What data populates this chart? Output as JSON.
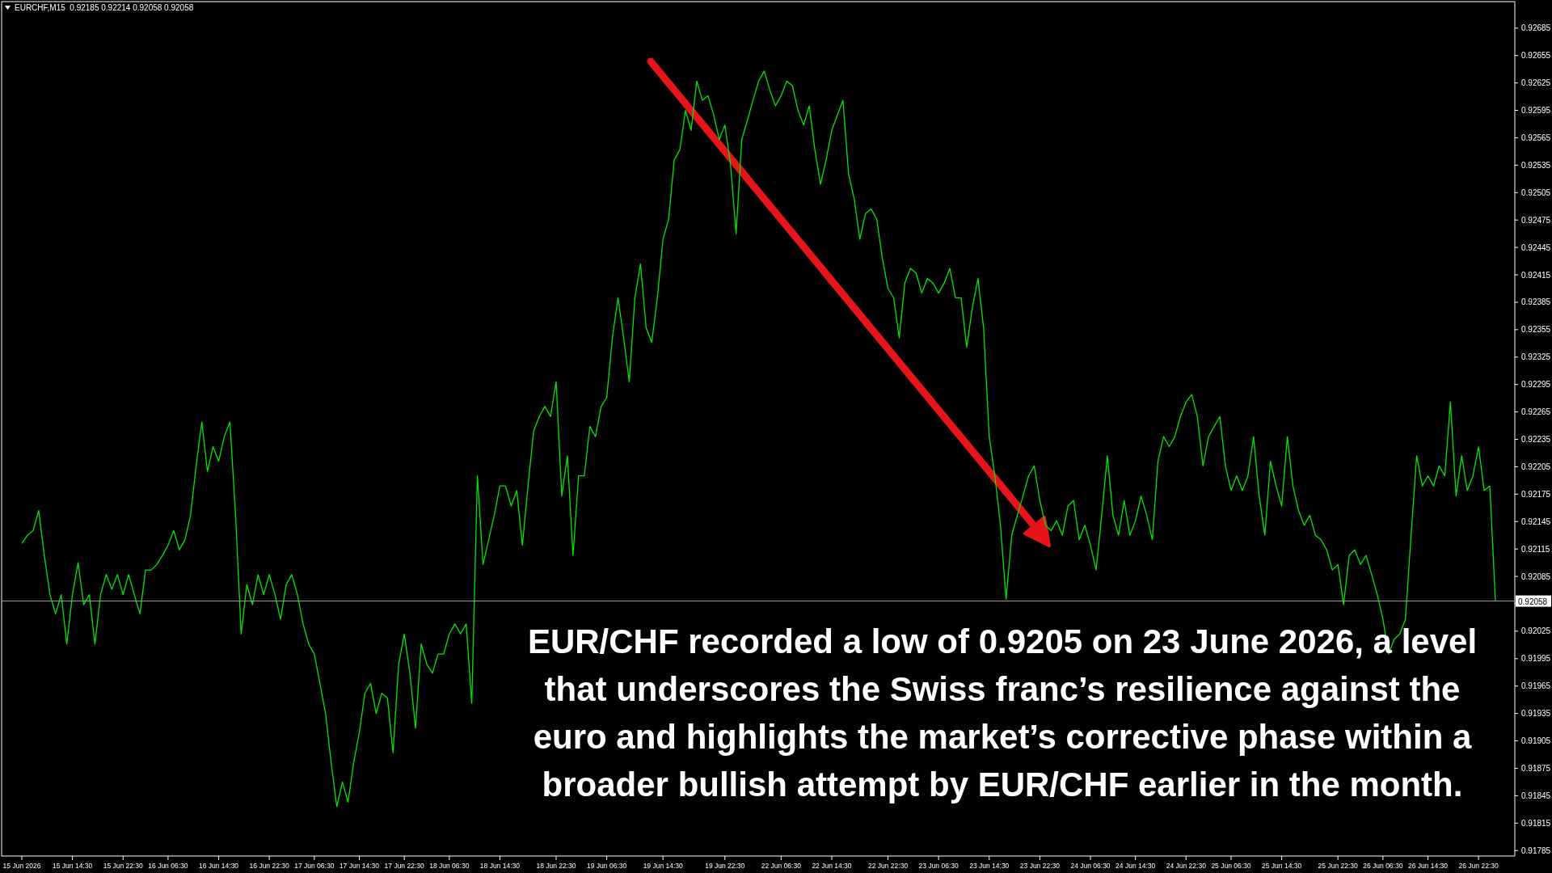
{
  "chart_data": {
    "type": "line",
    "title": "EURCHF,M15  0.92185 0.92214 0.92058 0.92058",
    "annotations": [
      "EUR/CHF recorded a low of 0.9205 on 23 June 2026, a level that underscores the Swiss franc’s resilience against the euro and highlights the market’s corrective phase within a broader bullish attempt by EUR/CHF earlier in the month."
    ],
    "categories": [
      "15 Jun 2026",
      null,
      null,
      null,
      null,
      null,
      null,
      null,
      null,
      "15 Jun 14:30",
      null,
      null,
      null,
      null,
      null,
      null,
      null,
      null,
      "15 Jun 22:30",
      null,
      null,
      null,
      null,
      null,
      null,
      null,
      "16 Jun 06:30",
      null,
      null,
      null,
      null,
      null,
      null,
      null,
      null,
      "16 Jun 14:30",
      null,
      null,
      null,
      null,
      null,
      null,
      null,
      null,
      "16 Jun 22:30",
      null,
      null,
      null,
      null,
      null,
      null,
      null,
      "17 Jun 06:30",
      null,
      null,
      null,
      null,
      null,
      null,
      null,
      "17 Jun 14:30",
      null,
      null,
      null,
      null,
      null,
      null,
      null,
      "17 Jun 22:30",
      null,
      null,
      null,
      null,
      null,
      null,
      null,
      "18 Jun 06:30",
      null,
      null,
      null,
      null,
      null,
      null,
      null,
      null,
      "18 Jun 14:30",
      null,
      null,
      null,
      null,
      null,
      null,
      null,
      null,
      null,
      "18 Jun 22:30",
      null,
      null,
      null,
      null,
      null,
      null,
      null,
      null,
      "19 Jun 06:30",
      null,
      null,
      null,
      null,
      null,
      null,
      null,
      null,
      null,
      "19 Jun 14:30",
      null,
      null,
      null,
      null,
      null,
      null,
      null,
      null,
      null,
      null,
      "19 Jun 22:30",
      null,
      null,
      null,
      null,
      null,
      null,
      null,
      null,
      null,
      "22 Jun 06:30",
      null,
      null,
      null,
      null,
      null,
      null,
      null,
      null,
      "22 Jun 14:30",
      null,
      null,
      null,
      null,
      null,
      null,
      null,
      null,
      null,
      "22 Jun 22:30",
      null,
      null,
      null,
      null,
      null,
      null,
      null,
      null,
      "23 Jun 06:30",
      null,
      null,
      null,
      null,
      null,
      null,
      null,
      null,
      "23 Jun 14:30",
      null,
      null,
      null,
      null,
      null,
      null,
      null,
      null,
      "23 Jun 22:30",
      null,
      null,
      null,
      null,
      null,
      null,
      null,
      null,
      "24 Jun 06:30",
      null,
      null,
      null,
      null,
      null,
      null,
      null,
      "24 Jun 14:30",
      null,
      null,
      null,
      null,
      null,
      null,
      null,
      null,
      "24 Jun 22:30",
      null,
      null,
      null,
      null,
      null,
      null,
      null,
      "25 Jun 06:30",
      null,
      null,
      null,
      null,
      null,
      null,
      null,
      null,
      "25 Jun 14:30",
      null,
      null,
      null,
      null,
      null,
      null,
      null,
      null,
      null,
      "25 Jun 22:30",
      null,
      null,
      null,
      null,
      null,
      null,
      null,
      "26 Jun 06:30",
      null,
      null,
      null,
      null,
      null,
      null,
      null,
      "26 Jun 14:30",
      null,
      null,
      null,
      null,
      null,
      null,
      null,
      null,
      "26 Jun 22:30",
      null,
      null,
      null
    ],
    "series": [
      {
        "color": "#00e600",
        "values": [
          0.92121,
          0.9213,
          0.92135,
          0.92157,
          0.92108,
          0.92065,
          0.92044,
          0.92065,
          0.92011,
          0.92065,
          0.921,
          0.92054,
          0.92065,
          0.92011,
          0.92065,
          0.92087,
          0.92071,
          0.92087,
          0.92065,
          0.92087,
          0.92065,
          0.92044,
          0.92092,
          0.92092,
          0.92098,
          0.92108,
          0.92119,
          0.92135,
          0.92114,
          0.92125,
          0.92152,
          0.92206,
          0.92254,
          0.922,
          0.92227,
          0.92211,
          0.92238,
          0.92254,
          0.92152,
          0.92022,
          0.92076,
          0.92054,
          0.92087,
          0.92065,
          0.92087,
          0.92065,
          0.92038,
          0.92076,
          0.92087,
          0.92065,
          0.92033,
          0.92011,
          0.92,
          0.91968,
          0.91935,
          0.91881,
          0.91833,
          0.9186,
          0.91838,
          0.91881,
          0.91914,
          0.91957,
          0.91968,
          0.91935,
          0.91957,
          0.91952,
          0.91892,
          0.91989,
          0.92022,
          0.91979,
          0.91919,
          0.92011,
          0.91989,
          0.91979,
          0.92,
          0.92,
          0.92022,
          0.92033,
          0.92022,
          0.92033,
          0.91946,
          0.92195,
          0.92098,
          0.92125,
          0.92152,
          0.92184,
          0.92184,
          0.92162,
          0.92179,
          0.92119,
          0.92184,
          0.92244,
          0.9226,
          0.92271,
          0.9226,
          0.92298,
          0.92173,
          0.92217,
          0.92108,
          0.92195,
          0.92195,
          0.92249,
          0.92238,
          0.92271,
          0.92281,
          0.92346,
          0.9239,
          0.92346,
          0.92298,
          0.9239,
          0.92427,
          0.92357,
          0.92341,
          0.9239,
          0.92454,
          0.92476,
          0.92541,
          0.92552,
          0.92595,
          0.92573,
          0.92627,
          0.92606,
          0.92611,
          0.9259,
          0.92563,
          0.92579,
          0.92536,
          0.9246,
          0.92563,
          0.92584,
          0.92606,
          0.92627,
          0.92638,
          0.92617,
          0.926,
          0.92611,
          0.92627,
          0.92622,
          0.92595,
          0.92579,
          0.926,
          0.92552,
          0.92514,
          0.92541,
          0.92573,
          0.9259,
          0.92606,
          0.92525,
          0.92498,
          0.92454,
          0.92482,
          0.92487,
          0.92476,
          0.92433,
          0.924,
          0.9239,
          0.92346,
          0.92406,
          0.92422,
          0.92417,
          0.92395,
          0.92411,
          0.92406,
          0.92395,
          0.92406,
          0.92422,
          0.9239,
          0.9239,
          0.92336,
          0.92379,
          0.92411,
          0.92357,
          0.92238,
          0.92195,
          0.92141,
          0.9206,
          0.9213,
          0.92152,
          0.92173,
          0.92195,
          0.92206,
          0.92168,
          0.92141,
          0.92135,
          0.92146,
          0.9213,
          0.92162,
          0.92168,
          0.92125,
          0.92141,
          0.92119,
          0.92092,
          0.92152,
          0.92217,
          0.92152,
          0.9213,
          0.92168,
          0.9213,
          0.92146,
          0.92173,
          0.92152,
          0.92125,
          0.92211,
          0.92238,
          0.92227,
          0.92238,
          0.9226,
          0.92276,
          0.92284,
          0.9226,
          0.92206,
          0.92238,
          0.92249,
          0.9226,
          0.92206,
          0.92179,
          0.92195,
          0.92179,
          0.92195,
          0.92238,
          0.92173,
          0.9213,
          0.92211,
          0.92184,
          0.92162,
          0.92238,
          0.92184,
          0.92157,
          0.92141,
          0.92152,
          0.9213,
          0.92125,
          0.92114,
          0.92092,
          0.92098,
          0.92054,
          0.92108,
          0.92114,
          0.92098,
          0.92108,
          0.92087,
          0.92065,
          0.92038,
          0.92,
          0.92016,
          0.92022,
          0.92038,
          0.9213,
          0.92217,
          0.92184,
          0.92195,
          0.92184,
          0.92206,
          0.92195,
          0.92276,
          0.92173,
          0.92217,
          0.92179,
          0.92195,
          0.92227,
          0.92179,
          0.92184,
          0.92058
        ]
      }
    ],
    "ylim": [
      0.91779,
      0.92714
    ],
    "yticks": [
      0.91785,
      0.91815,
      0.91845,
      0.91875,
      0.91905,
      0.91935,
      0.91965,
      0.91995,
      0.92025,
      {
        "value": 0.92055,
        "label": null
      },
      0.92085,
      0.92115,
      0.92145,
      0.92175,
      0.92205,
      0.92235,
      0.92265,
      0.92295,
      0.92325,
      0.92355,
      0.92385,
      0.92415,
      0.92445,
      0.92475,
      0.92505,
      0.92535,
      0.92565,
      0.92595,
      0.92625,
      0.92655,
      0.92685
    ],
    "ref_lines": [
      {
        "axis": "y",
        "value": 0.92058,
        "label": "0.92058",
        "color": "#a0a0a0"
      }
    ],
    "grid": false,
    "line_style": "solid",
    "marker": "none"
  }
}
